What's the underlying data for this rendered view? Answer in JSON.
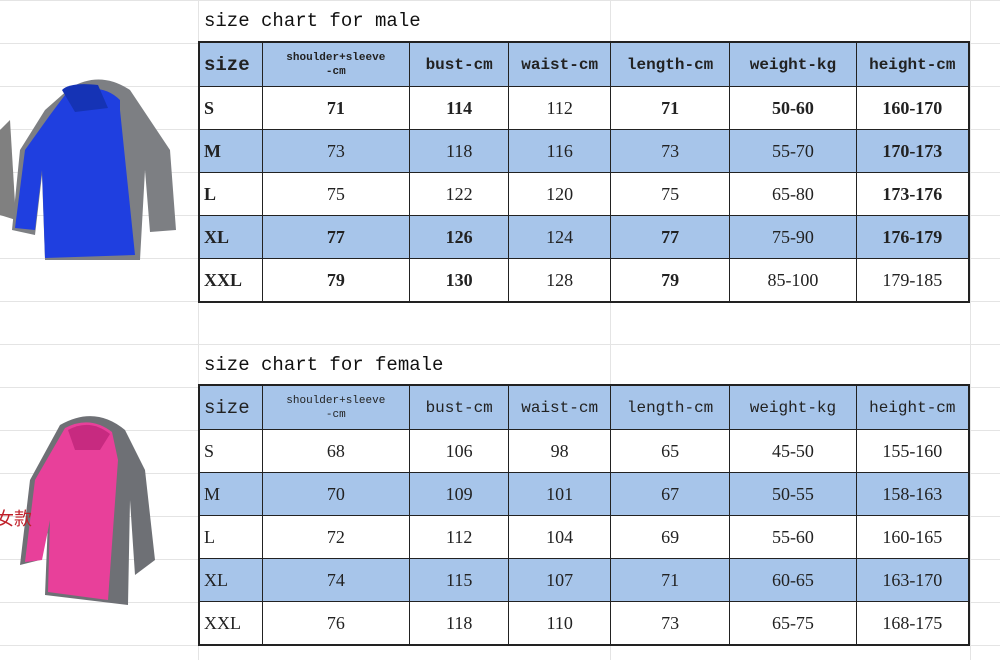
{
  "tables": [
    {
      "title": "size chart for male",
      "header": [
        "size",
        "shoulder+sleeve\n-cm",
        "bust-cm",
        "waist-cm",
        "length-cm",
        "weight-kg",
        "height-cm"
      ],
      "rows": [
        [
          "S",
          "71",
          "114",
          "112",
          "71",
          "50-60",
          "160-170"
        ],
        [
          "M",
          "73",
          "118",
          "116",
          "73",
          "55-70",
          "170-173"
        ],
        [
          "L",
          "75",
          "122",
          "120",
          "75",
          "65-80",
          "173-176"
        ],
        [
          "XL",
          "77",
          "126",
          "124",
          "77",
          "75-90",
          "176-179"
        ],
        [
          "XXL",
          "79",
          "130",
          "128",
          "79",
          "85-100",
          "179-185"
        ]
      ]
    },
    {
      "title": "size chart for female",
      "header": [
        "size",
        "shoulder+sleeve\n-cm",
        "bust-cm",
        "waist-cm",
        "length-cm",
        "weight-kg",
        "height-cm"
      ],
      "rows": [
        [
          "S",
          "68",
          "106",
          "98",
          "65",
          "45-50",
          "155-160"
        ],
        [
          "M",
          "70",
          "109",
          "101",
          "67",
          "50-55",
          "158-163"
        ],
        [
          "L",
          "72",
          "112",
          "104",
          "69",
          "55-60",
          "160-165"
        ],
        [
          "XL",
          "74",
          "115",
          "107",
          "71",
          "60-65",
          "163-170"
        ],
        [
          "XXL",
          "76",
          "118",
          "110",
          "73",
          "65-75",
          "168-175"
        ]
      ]
    }
  ],
  "female_tag": "女款"
}
